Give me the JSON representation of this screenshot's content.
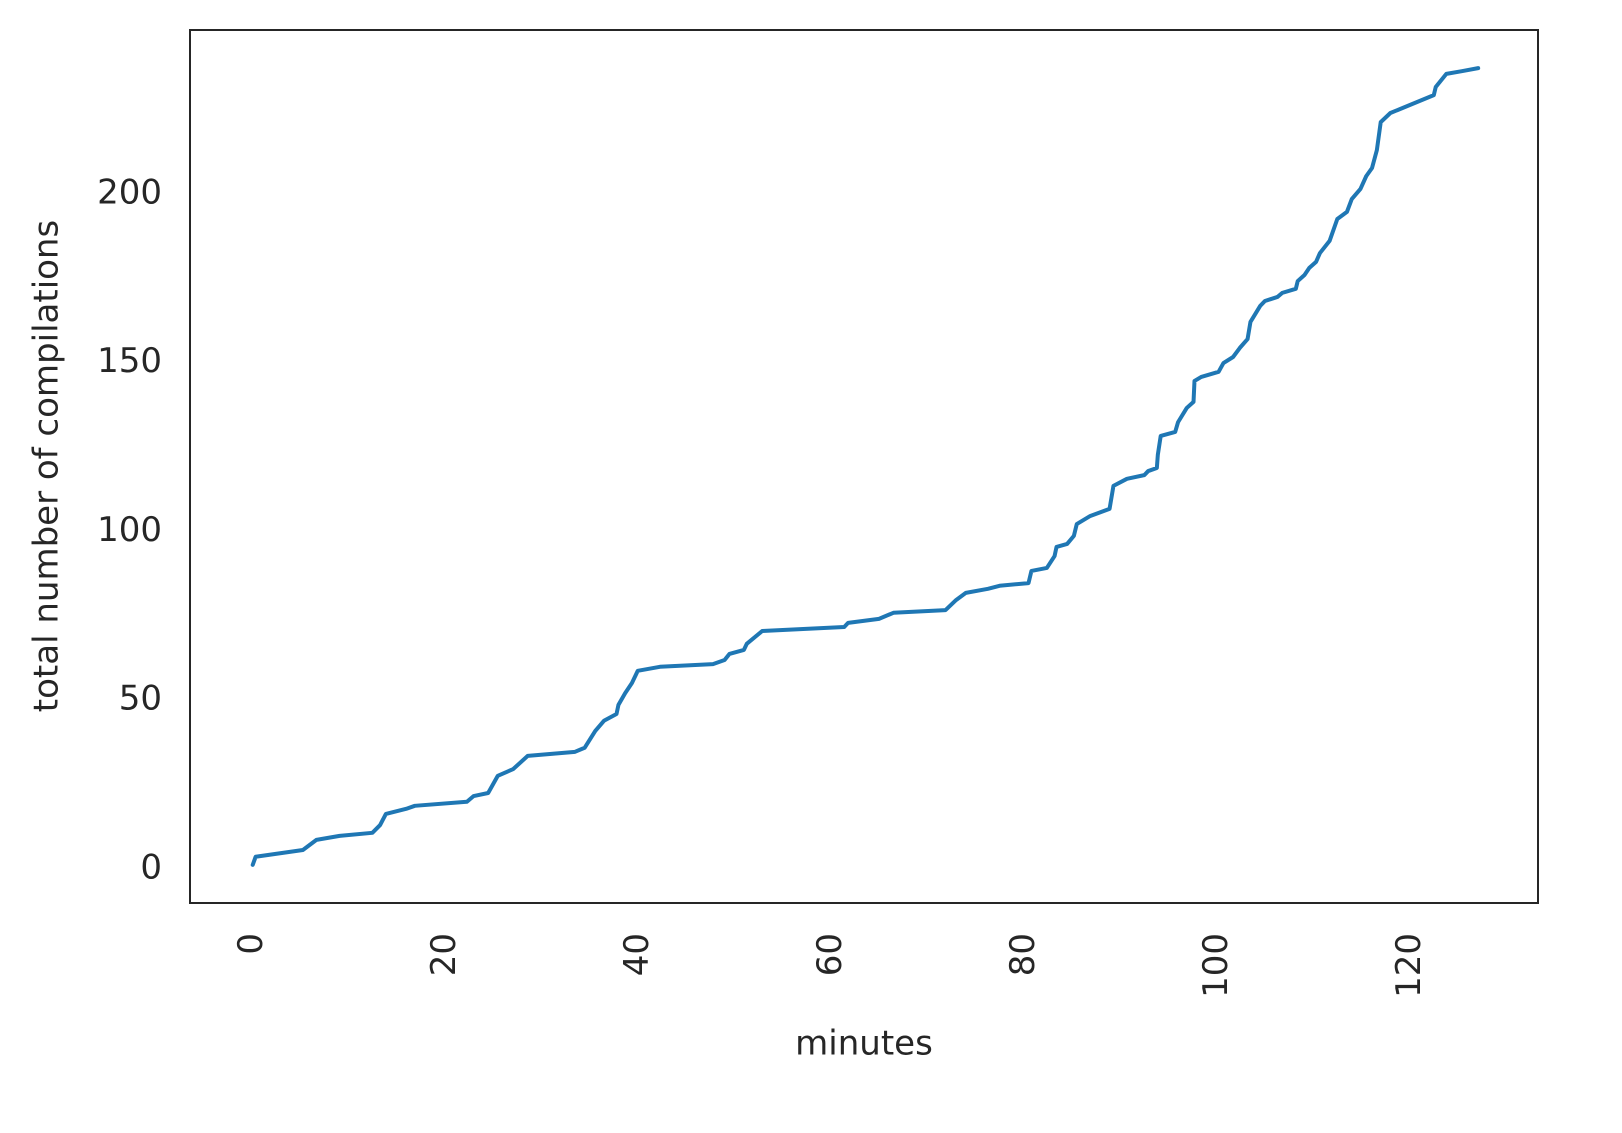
{
  "chart_data": {
    "type": "line",
    "xlabel": "minutes",
    "ylabel": "total number of compilations",
    "x": [
      0,
      0.3,
      5.2,
      6.6,
      9.0,
      12.4,
      13.2,
      13.8,
      15.9,
      16.8,
      22.2,
      22.9,
      24.4,
      25.4,
      27.0,
      28.5,
      33.4,
      34.4,
      35.5,
      36.4,
      37.7,
      37.9,
      38.6,
      39.3,
      39.9,
      42.2,
      47.7,
      48.9,
      49.4,
      50.9,
      51.2,
      52.8,
      61.3,
      61.7,
      64.9,
      66.4,
      71.8,
      72.9,
      73.9,
      76.2,
      77.4,
      80.4,
      80.7,
      82.3,
      83.1,
      83.3,
      84.4,
      85.1,
      85.4,
      86.8,
      88.8,
      89.2,
      90.6,
      92.4,
      92.8,
      93.7,
      93.8,
      94.1,
      95.6,
      95.9,
      96.8,
      97.5,
      97.6,
      98.3,
      100.1,
      100.6,
      101.6,
      102.3,
      103.1,
      103.4,
      104.4,
      104.9,
      106.2,
      106.7,
      108.1,
      108.3,
      109.0,
      109.5,
      110.2,
      110.6,
      111.6,
      112.4,
      113.4,
      113.9,
      114.8,
      115.4,
      116.0,
      116.5,
      116.9,
      117.9,
      120.2,
      122.4,
      122.6,
      123.7,
      125.3,
      127.0
    ],
    "series": [
      {
        "color": "#1f77b4",
        "values": [
          1.2,
          3.6,
          5.6,
          8.6,
          9.8,
          10.7,
          13.0,
          16.3,
          17.8,
          18.7,
          19.9,
          21.6,
          22.5,
          27.6,
          29.6,
          33.5,
          34.7,
          35.9,
          40.9,
          43.9,
          45.9,
          48.6,
          52.1,
          55.1,
          58.7,
          59.9,
          60.7,
          61.9,
          63.7,
          64.9,
          66.7,
          70.5,
          71.7,
          72.9,
          74.1,
          75.9,
          76.7,
          79.7,
          81.8,
          83.0,
          83.9,
          84.7,
          88.3,
          89.2,
          92.7,
          95.4,
          96.3,
          98.7,
          102.2,
          104.6,
          106.7,
          113.5,
          115.6,
          116.7,
          117.9,
          118.8,
          122.7,
          128.3,
          129.5,
          132.4,
          136.6,
          138.4,
          144.6,
          145.8,
          147.3,
          149.9,
          151.7,
          154.4,
          157.0,
          162.1,
          166.8,
          168.3,
          169.5,
          170.7,
          171.9,
          174.2,
          176.0,
          178.1,
          179.9,
          182.5,
          186.1,
          192.6,
          194.7,
          198.5,
          201.5,
          205.3,
          207.7,
          213.0,
          221.3,
          224.0,
          226.7,
          229.3,
          231.7,
          235.6,
          236.4,
          237.3
        ]
      }
    ],
    "xlim": [
      -6.5,
      133.2
    ],
    "ylim": [
      -10.1,
      248.6
    ],
    "xticks": [
      0,
      20,
      40,
      60,
      80,
      100,
      120
    ],
    "yticks": [
      0,
      50,
      100,
      150,
      200
    ],
    "grid": false
  }
}
